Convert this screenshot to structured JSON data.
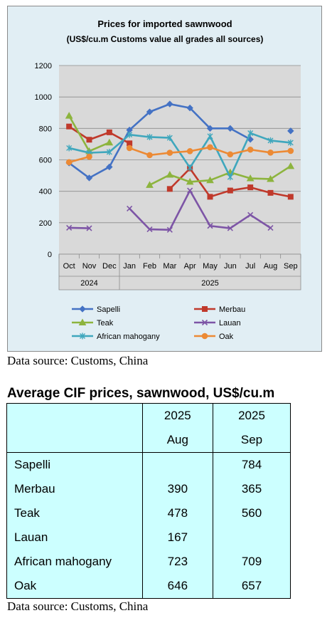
{
  "chart_data": {
    "type": "line",
    "title": "Prices for imported sawnwood",
    "subtitle": "(US$/cu.m Customs value all grades all sources)",
    "categories": [
      "Oct",
      "Nov",
      "Dec",
      "Jan",
      "Feb",
      "Mar",
      "Apr",
      "May",
      "Jun",
      "Jul",
      "Aug",
      "Sep"
    ],
    "year_groups": [
      {
        "label": "2024",
        "span": 3
      },
      {
        "label": "2025",
        "span": 9
      }
    ],
    "yticks": [
      0,
      200,
      400,
      600,
      800,
      1000,
      1200
    ],
    "ylim": [
      0,
      1200
    ],
    "grid": true,
    "legend_position": "bottom",
    "series": [
      {
        "name": "Sapelli",
        "color": "#4472c4",
        "marker": "diamond",
        "values": [
          580,
          485,
          555,
          790,
          905,
          955,
          930,
          800,
          800,
          730,
          null,
          784
        ]
      },
      {
        "name": "Merbau",
        "color": "#c0392b",
        "marker": "square",
        "values": [
          812,
          728,
          775,
          705,
          null,
          415,
          545,
          365,
          405,
          425,
          390,
          365
        ]
      },
      {
        "name": "Teak",
        "color": "#8db43e",
        "marker": "triangle",
        "values": [
          880,
          655,
          710,
          null,
          440,
          505,
          460,
          470,
          520,
          482,
          478,
          560
        ]
      },
      {
        "name": "Lauan",
        "color": "#7d55a6",
        "marker": "x",
        "values": [
          168,
          165,
          null,
          290,
          158,
          155,
          405,
          180,
          165,
          250,
          167,
          null
        ]
      },
      {
        "name": "African mahogany",
        "color": "#3fa7bd",
        "marker": "star",
        "values": [
          675,
          645,
          650,
          760,
          745,
          740,
          550,
          750,
          490,
          770,
          723,
          709
        ]
      },
      {
        "name": "Oak",
        "color": "#ec8a35",
        "marker": "circle",
        "values": [
          585,
          620,
          null,
          675,
          630,
          645,
          655,
          680,
          635,
          665,
          646,
          657
        ]
      }
    ]
  },
  "source_note_1": "Data source: Customs, China",
  "table": {
    "title": "Average CIF prices, sawnwood, US$/cu.m",
    "col1_year": "2025",
    "col1_month": "Aug",
    "col2_year": "2025",
    "col2_month": "Sep",
    "rows": [
      {
        "name": "Sapelli",
        "aug": "",
        "sep": "784"
      },
      {
        "name": "Merbau",
        "aug": "390",
        "sep": "365"
      },
      {
        "name": "Teak",
        "aug": "478",
        "sep": "560"
      },
      {
        "name": "Lauan",
        "aug": "167",
        "sep": ""
      },
      {
        "name": "African mahogany",
        "aug": "723",
        "sep": "709"
      },
      {
        "name": "Oak",
        "aug": "646",
        "sep": "657"
      }
    ]
  },
  "source_note_2": "Data source: Customs, China"
}
